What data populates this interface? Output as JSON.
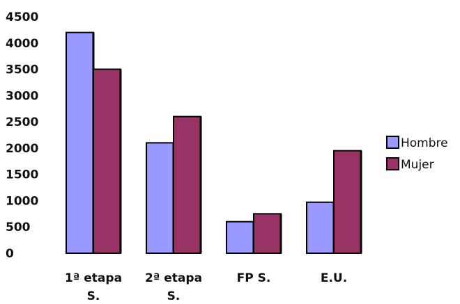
{
  "chart_data": {
    "type": "bar",
    "categories": [
      [
        "1ª etapa",
        "S."
      ],
      [
        "2ª etapa",
        "S."
      ],
      [
        "FP S."
      ],
      [
        "E.U."
      ]
    ],
    "series": [
      {
        "name": "Hombre",
        "color": "#9999ff",
        "values": [
          4200,
          2100,
          600,
          970
        ]
      },
      {
        "name": "Mujer",
        "color": "#993366",
        "values": [
          3500,
          2600,
          750,
          1950
        ]
      }
    ],
    "y_ticks": [
      "0",
      "500",
      "1000",
      "1500",
      "2000",
      "2500",
      "3000",
      "3500",
      "4000",
      "4500"
    ],
    "ylim": [
      0,
      4500
    ],
    "title": "",
    "xlabel": "",
    "ylabel": "",
    "grid": false,
    "legend_position": "right"
  }
}
